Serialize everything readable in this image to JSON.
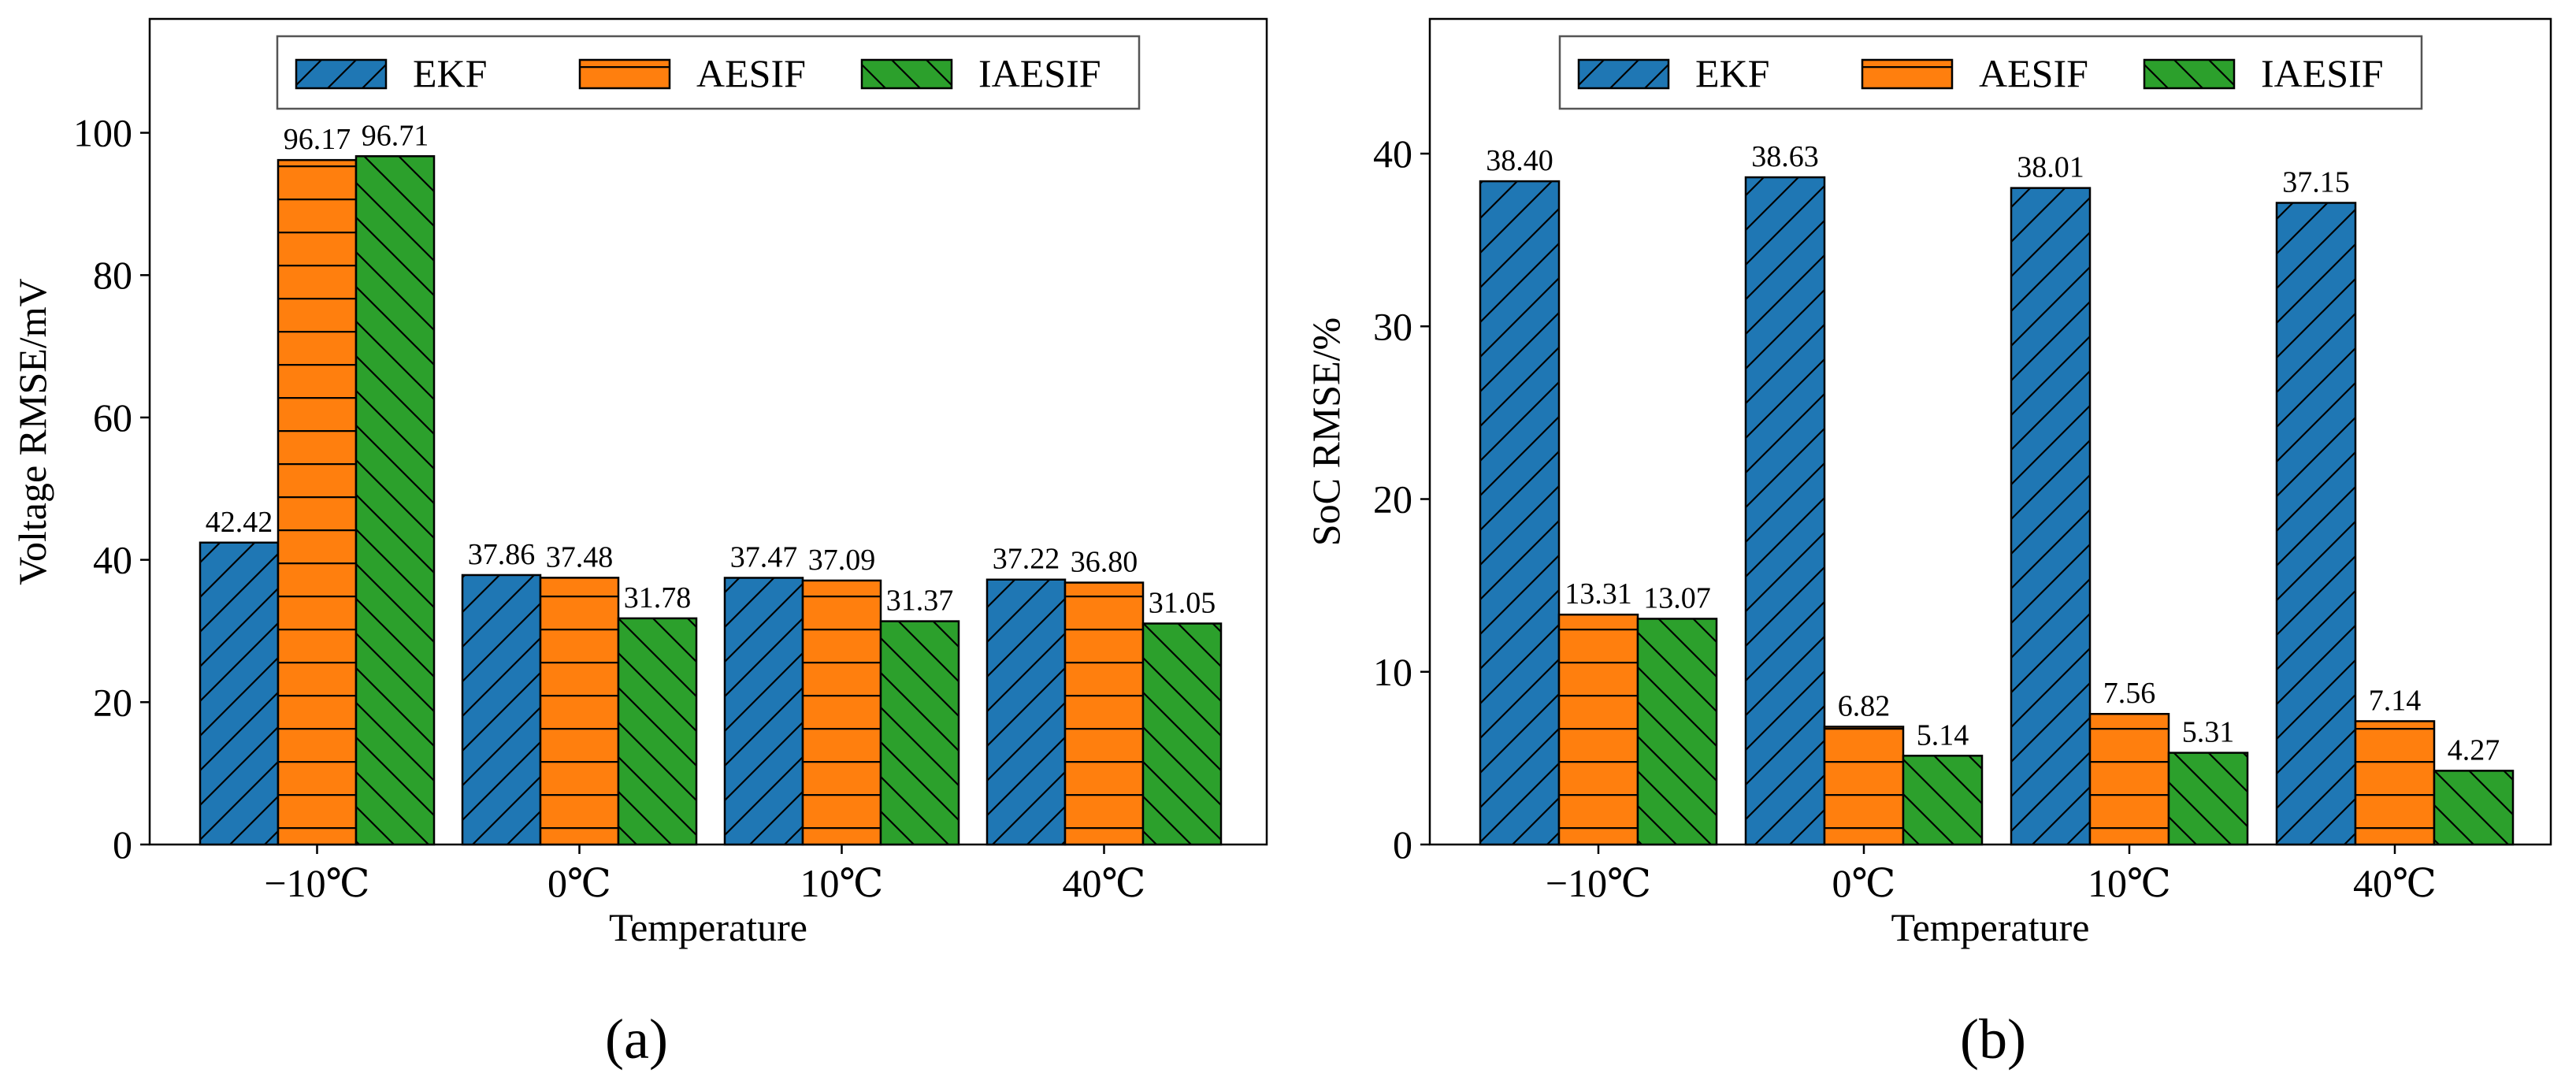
{
  "colors": {
    "EKF": "#1f77b4",
    "AESIF": "#ff7f0e",
    "IAESIF": "#2ca02c"
  },
  "chart_data": [
    {
      "id": "a",
      "panel_label": "(a)",
      "type": "bar",
      "xlabel": "Temperature",
      "ylabel": "Voltage  RMSE/mV",
      "ylim": [
        0,
        116
      ],
      "yticks": [
        "0",
        "20",
        "40",
        "60",
        "80",
        "100"
      ],
      "legend_position": "top-center",
      "categories": [
        "−10℃",
        "0℃",
        "10℃",
        "40℃"
      ],
      "series": [
        {
          "name": "EKF",
          "values": [
            42.42,
            37.86,
            37.47,
            37.22
          ],
          "labels": [
            "42.42",
            "37.86",
            "37.47",
            "37.22"
          ],
          "hatch": "fwd"
        },
        {
          "name": "AESIF",
          "values": [
            96.17,
            37.48,
            37.09,
            36.8
          ],
          "labels": [
            "96.17",
            "37.48",
            "37.09",
            "36.80"
          ],
          "hatch": "horiz"
        },
        {
          "name": "IAESIF",
          "values": [
            96.71,
            31.78,
            31.37,
            31.05
          ],
          "labels": [
            "96.71",
            "31.78",
            "31.37",
            "31.05"
          ],
          "hatch": "back"
        }
      ]
    },
    {
      "id": "b",
      "panel_label": "(b)",
      "type": "bar",
      "xlabel": "Temperature",
      "ylabel": "SoC  RMSE/%",
      "ylim": [
        0,
        47.8
      ],
      "yticks": [
        "0",
        "10",
        "20",
        "30",
        "40"
      ],
      "legend_position": "top-center",
      "categories": [
        "−10℃",
        "0℃",
        "10℃",
        "40℃"
      ],
      "series": [
        {
          "name": "EKF",
          "values": [
            38.4,
            38.63,
            38.01,
            37.15
          ],
          "labels": [
            "38.40",
            "38.63",
            "38.01",
            "37.15"
          ],
          "hatch": "fwd"
        },
        {
          "name": "AESIF",
          "values": [
            13.31,
            6.82,
            7.56,
            7.14
          ],
          "labels": [
            "13.31",
            "6.82",
            "7.56",
            "7.14"
          ],
          "hatch": "horiz"
        },
        {
          "name": "IAESIF",
          "values": [
            13.07,
            5.14,
            5.31,
            4.27
          ],
          "labels": [
            "13.07",
            "5.14",
            "5.31",
            "4.27"
          ],
          "hatch": "back"
        }
      ]
    }
  ]
}
